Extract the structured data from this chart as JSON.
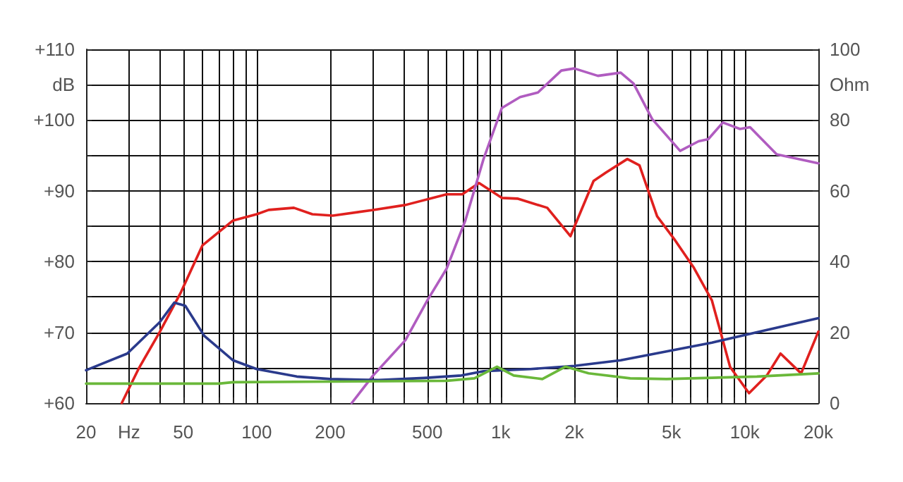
{
  "chart_data": {
    "type": "line",
    "xlim": [
      20,
      20000
    ],
    "log": "x",
    "grid": true,
    "marker": "none",
    "line_style": "solid",
    "xticks": [
      20,
      {
        "value": 30,
        "label": "Hz"
      },
      {
        "value": 40,
        "label": null
      },
      50,
      {
        "value": 60,
        "label": null
      },
      {
        "value": 70,
        "label": null
      },
      {
        "value": 80,
        "label": null
      },
      {
        "value": 90,
        "label": null
      },
      100,
      200,
      {
        "value": 300,
        "label": null
      },
      {
        "value": 400,
        "label": null
      },
      500,
      {
        "value": 600,
        "label": null
      },
      {
        "value": 700,
        "label": null
      },
      {
        "value": 800,
        "label": null
      },
      {
        "value": 900,
        "label": null
      },
      {
        "value": 1000,
        "label": "1k"
      },
      {
        "value": 2000,
        "label": "2k"
      },
      {
        "value": 3000,
        "label": null
      },
      {
        "value": 4000,
        "label": null
      },
      {
        "value": 5000,
        "label": "5k"
      },
      {
        "value": 6000,
        "label": null
      },
      {
        "value": 7000,
        "label": null
      },
      {
        "value": 8000,
        "label": null
      },
      {
        "value": 9000,
        "label": null
      },
      {
        "value": 10000,
        "label": "10k"
      },
      {
        "value": 20000,
        "label": "20k"
      }
    ],
    "ylim": [
      60,
      110
    ],
    "yticks": [
      {
        "value": 60,
        "label": "+60"
      },
      {
        "value": 65,
        "label": null
      },
      {
        "value": 70,
        "label": "+70"
      },
      {
        "value": 75,
        "label": null
      },
      {
        "value": 80,
        "label": "+80"
      },
      {
        "value": 85,
        "label": null
      },
      {
        "value": 90,
        "label": "+90"
      },
      {
        "value": 95,
        "label": null
      },
      {
        "value": 100,
        "label": "+100"
      },
      {
        "value": 105,
        "label": "dB"
      },
      {
        "value": 110,
        "label": "+110"
      }
    ],
    "y2lim": [
      0,
      100
    ],
    "y2ticks": [
      0,
      20,
      40,
      60,
      80,
      {
        "value": 90,
        "label": "Ohm"
      },
      100
    ],
    "series": [
      {
        "color": "#e0201e",
        "x": [
          28,
          33,
          40,
          49,
          60,
          80,
          100,
          112,
          142,
          169,
          205,
          300,
          407,
          600,
          695,
          815,
          1010,
          1170,
          1550,
          1930,
          2400,
          2700,
          3300,
          3700,
          4370,
          5130,
          6160,
          7330,
          8700,
          10400,
          12300,
          14000,
          17000,
          20000
        ],
        "values": [
          60,
          65,
          70,
          75.7,
          82.3,
          85.8,
          86.7,
          87.3,
          87.6,
          86.7,
          86.5,
          87.3,
          88,
          89.5,
          89.5,
          91.1,
          89,
          88.9,
          87.6,
          83.6,
          91.4,
          92.6,
          94.5,
          93.6,
          86.4,
          83.2,
          79.2,
          74.5,
          65.1,
          61.4,
          63.9,
          67,
          64.2,
          70.1
        ]
      },
      {
        "color": "#b05cc0",
        "axis": "y2",
        "x": [
          245,
          300,
          407,
          500,
          600,
          715,
          850,
          1010,
          1200,
          1420,
          1770,
          2000,
          2500,
          3100,
          3500,
          4170,
          5430,
          6460,
          7080,
          8130,
          9550,
          10500,
          13500,
          20000
        ],
        "values": [
          0,
          7.8,
          17.8,
          29,
          38,
          51.5,
          69,
          83.4,
          86.5,
          87.8,
          94,
          94.6,
          92.5,
          93.4,
          90.3,
          80.3,
          71.3,
          74,
          74.6,
          79.3,
          77.5,
          78,
          70.3,
          67.8
        ]
      },
      {
        "color": "#2a3a8c",
        "axis": "y2",
        "x": [
          20,
          29.5,
          40,
          46,
          51,
          61,
          80,
          100,
          146,
          200,
          316,
          484,
          690,
          850,
          1320,
          2000,
          3100,
          4770,
          7330,
          11200,
          20000
        ],
        "values": [
          9.3,
          14,
          22.8,
          28.4,
          27.5,
          19,
          12.1,
          9.6,
          7.5,
          6.8,
          6.5,
          7.1,
          7.8,
          9,
          9.6,
          10.5,
          12.1,
          14.6,
          17.1,
          20,
          24
        ]
      },
      {
        "color": "#6ab83a",
        "axis": "y2",
        "x": [
          20,
          70,
          80,
          600,
          780,
          965,
          1130,
          1480,
          1840,
          2290,
          3390,
          4770,
          11200,
          20000
        ],
        "values": [
          5.5,
          5.5,
          5.9,
          6.3,
          7,
          10.3,
          7.8,
          6.8,
          10.3,
          8.4,
          7,
          6.8,
          7.5,
          8.4
        ]
      }
    ]
  }
}
